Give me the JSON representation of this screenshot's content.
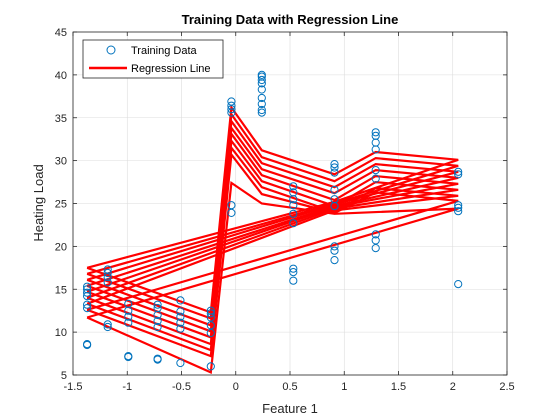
{
  "chart_data": {
    "type": "scatter",
    "title": "Training Data with Regression Line",
    "xlabel": "Feature 1",
    "ylabel": "Heating Load",
    "xlim": [
      -1.5,
      2.5
    ],
    "ylim": [
      5,
      45
    ],
    "xticks": [
      -1.5,
      -1,
      -0.5,
      0,
      0.5,
      1,
      1.5,
      2,
      2.5
    ],
    "xtick_labels": [
      "-1.5",
      "-1",
      "-0.5",
      "0",
      "0.5",
      "1",
      "1.5",
      "2",
      "2.5"
    ],
    "yticks": [
      5,
      10,
      15,
      20,
      25,
      30,
      35,
      40,
      45
    ],
    "ytick_labels": [
      "5",
      "10",
      "15",
      "20",
      "25",
      "30",
      "35",
      "40",
      "45"
    ],
    "grid": true,
    "legend_position": "top-left",
    "colors": {
      "scatter": "#0072bd",
      "line": "#ff0000"
    },
    "series": [
      {
        "name": "Training Data",
        "kind": "scatter",
        "points": [
          [
            -1.37,
            8.5
          ],
          [
            -1.37,
            8.6
          ],
          [
            -1.37,
            12.8
          ],
          [
            -1.37,
            13.2
          ],
          [
            -1.37,
            14.2
          ],
          [
            -1.37,
            14.6
          ],
          [
            -1.37,
            15.0
          ],
          [
            -1.37,
            15.3
          ],
          [
            -1.18,
            10.6
          ],
          [
            -1.18,
            10.9
          ],
          [
            -1.18,
            15.8
          ],
          [
            -1.18,
            16.4
          ],
          [
            -1.18,
            16.9
          ],
          [
            -1.18,
            17.3
          ],
          [
            -0.99,
            7.1
          ],
          [
            -0.99,
            7.2
          ],
          [
            -0.99,
            11.1
          ],
          [
            -0.99,
            11.8
          ],
          [
            -0.99,
            12.5
          ],
          [
            -0.99,
            13.3
          ],
          [
            -0.72,
            6.8
          ],
          [
            -0.72,
            6.9
          ],
          [
            -0.72,
            10.6
          ],
          [
            -0.72,
            11.3
          ],
          [
            -0.72,
            12.0
          ],
          [
            -0.72,
            12.8
          ],
          [
            -0.72,
            13.2
          ],
          [
            -0.51,
            6.4
          ],
          [
            -0.51,
            10.4
          ],
          [
            -0.51,
            11.1
          ],
          [
            -0.51,
            11.8
          ],
          [
            -0.51,
            12.4
          ],
          [
            -0.51,
            13.7
          ],
          [
            -0.23,
            6.0
          ],
          [
            -0.23,
            9.9
          ],
          [
            -0.23,
            10.8
          ],
          [
            -0.23,
            11.7
          ],
          [
            -0.23,
            12.2
          ],
          [
            -0.23,
            12.5
          ],
          [
            -0.04,
            23.9
          ],
          [
            -0.04,
            24.8
          ],
          [
            -0.04,
            35.6
          ],
          [
            -0.04,
            36.0
          ],
          [
            -0.04,
            36.4
          ],
          [
            -0.04,
            36.9
          ],
          [
            0.24,
            35.6
          ],
          [
            0.24,
            35.9
          ],
          [
            0.24,
            36.6
          ],
          [
            0.24,
            37.3
          ],
          [
            0.24,
            38.3
          ],
          [
            0.24,
            39.0
          ],
          [
            0.24,
            39.4
          ],
          [
            0.24,
            39.8
          ],
          [
            0.24,
            40.0
          ],
          [
            0.53,
            16.0
          ],
          [
            0.53,
            17.0
          ],
          [
            0.53,
            17.4
          ],
          [
            0.53,
            22.7
          ],
          [
            0.53,
            23.8
          ],
          [
            0.53,
            24.8
          ],
          [
            0.53,
            25.5
          ],
          [
            0.53,
            26.3
          ],
          [
            0.53,
            27.0
          ],
          [
            0.91,
            18.4
          ],
          [
            0.91,
            19.5
          ],
          [
            0.91,
            20.0
          ],
          [
            0.91,
            24.7
          ],
          [
            0.91,
            25.5
          ],
          [
            0.91,
            26.6
          ],
          [
            0.91,
            28.6
          ],
          [
            0.91,
            29.2
          ],
          [
            0.91,
            29.6
          ],
          [
            1.29,
            19.8
          ],
          [
            1.29,
            20.7
          ],
          [
            1.29,
            21.4
          ],
          [
            1.29,
            27.9
          ],
          [
            1.29,
            28.9
          ],
          [
            1.29,
            31.3
          ],
          [
            1.29,
            32.1
          ],
          [
            1.29,
            32.9
          ],
          [
            1.29,
            33.3
          ],
          [
            2.05,
            15.6
          ],
          [
            2.05,
            24.1
          ],
          [
            2.05,
            24.5
          ],
          [
            2.05,
            24.8
          ],
          [
            2.05,
            28.4
          ],
          [
            2.05,
            28.7
          ]
        ]
      },
      {
        "name": "Regression Line",
        "kind": "line",
        "paths": [
          [
            [
              -1.37,
              17.5
            ],
            [
              -0.23,
              12.3
            ],
            [
              -0.04,
              36.2
            ],
            [
              0.24,
              31.2
            ],
            [
              0.91,
              28.4
            ],
            [
              1.29,
              31.0
            ],
            [
              2.05,
              30.1
            ],
            [
              0.91,
              25.2
            ],
            [
              -1.37,
              17.5
            ]
          ],
          [
            [
              -1.37,
              16.8
            ],
            [
              -0.23,
              11.6
            ],
            [
              -0.04,
              35.4
            ],
            [
              0.24,
              30.4
            ],
            [
              0.91,
              27.6
            ],
            [
              1.29,
              30.3
            ],
            [
              2.05,
              29.4
            ],
            [
              0.91,
              25.0
            ],
            [
              -1.37,
              16.8
            ]
          ],
          [
            [
              -1.37,
              16.1
            ],
            [
              -0.23,
              10.8
            ],
            [
              -0.04,
              34.6
            ],
            [
              0.24,
              29.7
            ],
            [
              0.91,
              26.9
            ],
            [
              1.29,
              29.6
            ],
            [
              2.05,
              28.7
            ],
            [
              0.91,
              24.9
            ],
            [
              -1.37,
              16.1
            ]
          ],
          [
            [
              -1.37,
              15.4
            ],
            [
              -0.23,
              10.1
            ],
            [
              -0.04,
              33.8
            ],
            [
              0.24,
              29.0
            ],
            [
              0.91,
              26.2
            ],
            [
              1.29,
              28.9
            ],
            [
              2.05,
              28.0
            ],
            [
              0.91,
              24.7
            ],
            [
              -1.37,
              15.4
            ]
          ],
          [
            [
              -1.37,
              14.7
            ],
            [
              -0.23,
              9.4
            ],
            [
              -0.04,
              33.1
            ],
            [
              0.24,
              28.3
            ],
            [
              0.91,
              25.4
            ],
            [
              1.29,
              28.2
            ],
            [
              2.05,
              27.3
            ],
            [
              0.91,
              24.6
            ],
            [
              -1.37,
              14.7
            ]
          ],
          [
            [
              -1.37,
              14.0
            ],
            [
              -0.23,
              8.6
            ],
            [
              -0.04,
              32.3
            ],
            [
              0.24,
              27.6
            ],
            [
              0.91,
              24.7
            ],
            [
              1.29,
              27.5
            ],
            [
              2.05,
              26.6
            ],
            [
              0.91,
              24.4
            ],
            [
              -1.37,
              14.0
            ]
          ],
          [
            [
              -1.37,
              13.3
            ],
            [
              -0.23,
              7.9
            ],
            [
              -0.04,
              31.5
            ],
            [
              0.24,
              26.9
            ],
            [
              0.91,
              24.0
            ],
            [
              1.29,
              26.8
            ],
            [
              2.05,
              25.9
            ],
            [
              0.91,
              24.2
            ],
            [
              -1.37,
              13.3
            ]
          ],
          [
            [
              -1.37,
              12.6
            ],
            [
              -0.23,
              7.2
            ],
            [
              -0.04,
              30.7
            ],
            [
              0.24,
              26.1
            ],
            [
              0.91,
              23.9
            ],
            [
              1.29,
              26.3
            ],
            [
              2.05,
              25.3
            ],
            [
              -1.37,
              12.6
            ]
          ],
          [
            [
              -1.37,
              11.7
            ],
            [
              -0.23,
              5.3
            ],
            [
              -0.04,
              27.4
            ],
            [
              0.24,
              25.0
            ],
            [
              0.91,
              23.8
            ],
            [
              2.05,
              24.4
            ],
            [
              -1.37,
              11.7
            ]
          ]
        ]
      }
    ]
  }
}
